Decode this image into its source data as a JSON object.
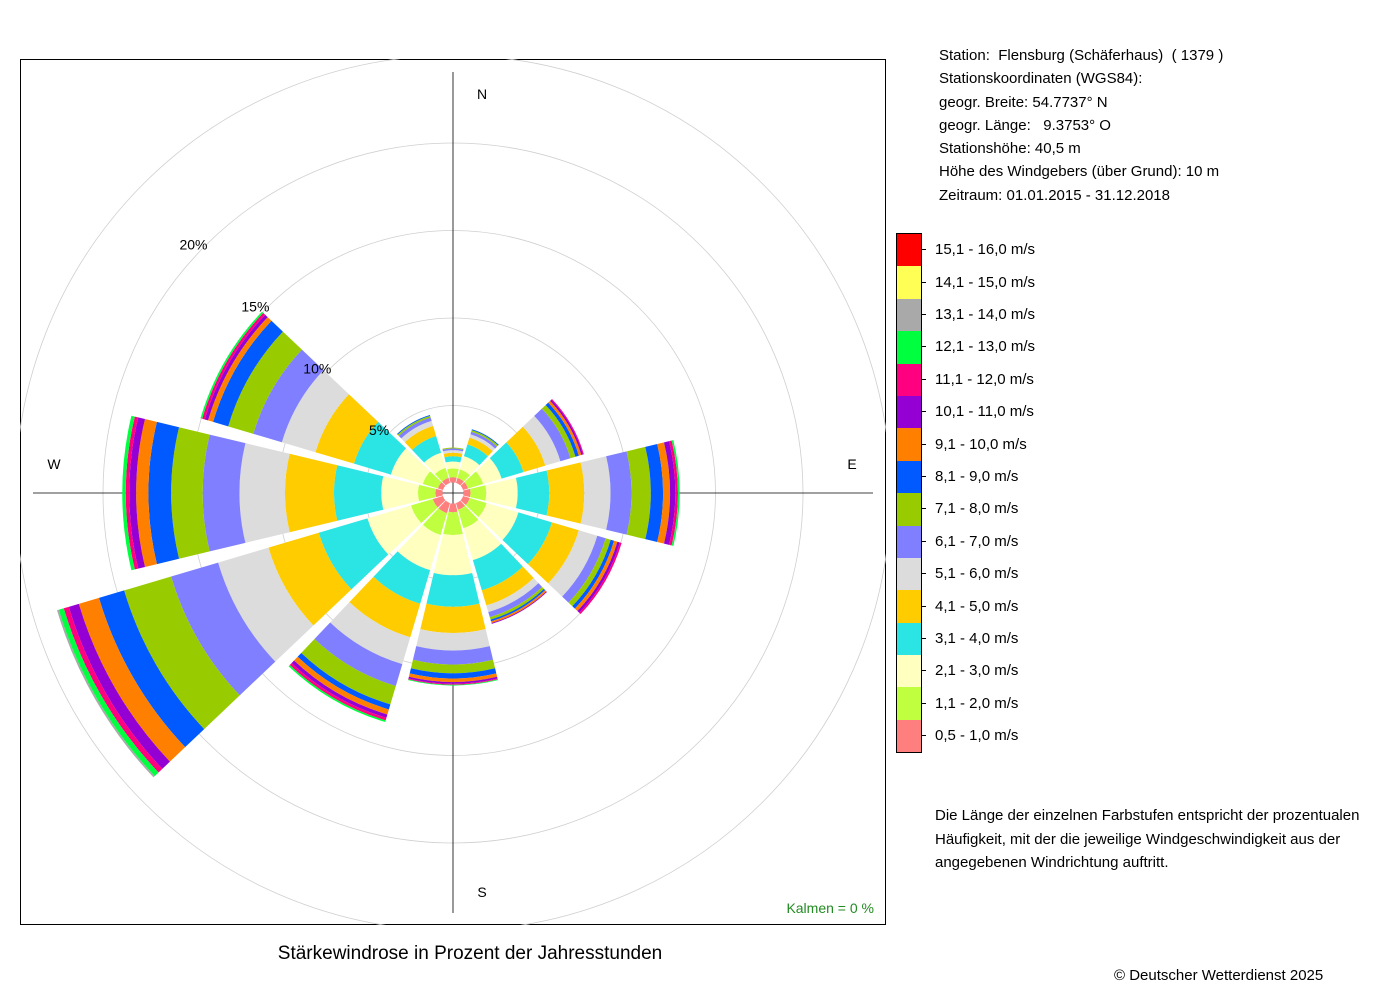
{
  "chart_data": {
    "type": "windrose",
    "title": "Stärkewindrose in Prozent der Jahresstunden",
    "directions": [
      "N",
      "NNE",
      "ENE",
      "E",
      "ESE",
      "SSE",
      "S",
      "SSW",
      "WSW",
      "W",
      "WNW",
      "NNW"
    ],
    "cardinal_labels": [
      "N",
      "E",
      "S",
      "W"
    ],
    "radial_ticks": [
      {
        "value": 5,
        "label": "5%"
      },
      {
        "value": 10,
        "label": "10%"
      },
      {
        "value": 15,
        "label": "15%"
      },
      {
        "value": 20,
        "label": "20%"
      }
    ],
    "r_max": 20,
    "calms_label": "Kalmen  =  0 %",
    "speed_classes": [
      {
        "label": "0,5 - 1,0 m/s",
        "color": "#FF7F7F"
      },
      {
        "label": "1,1 - 2,0 m/s",
        "color": "#BFFF3F"
      },
      {
        "label": "2,1 - 3,0 m/s",
        "color": "#FFFFBF"
      },
      {
        "label": "3,1 - 4,0 m/s",
        "color": "#2BE4E4"
      },
      {
        "label": "4,1 - 5,0 m/s",
        "color": "#FFCC00"
      },
      {
        "label": "5,1 - 6,0 m/s",
        "color": "#DCDCDC"
      },
      {
        "label": "6,1 - 7,0 m/s",
        "color": "#7F7FFF"
      },
      {
        "label": "7,1 - 8,0 m/s",
        "color": "#99CC00"
      },
      {
        "label": "8,1 - 9,0 m/s",
        "color": "#005AFF"
      },
      {
        "label": "9,1 - 10,0 m/s",
        "color": "#FF8000"
      },
      {
        "label": "10,1 - 11,0 m/s",
        "color": "#9400D3"
      },
      {
        "label": "11,1 - 12,0 m/s",
        "color": "#FF0080"
      },
      {
        "label": "12,1 - 13,0 m/s",
        "color": "#00FF3F"
      },
      {
        "label": "13,1 - 14,0 m/s",
        "color": "#A9A9A9"
      },
      {
        "label": "14,1 - 15,0 m/s",
        "color": "#FFFF55"
      },
      {
        "label": "15,1 - 16,0 m/s",
        "color": "#FF0000"
      }
    ],
    "inner_ring_percent": 0.6,
    "series": [
      {
        "direction": "N",
        "values": [
          0.3,
          0.5,
          0.4,
          0.3,
          0.2,
          0.15,
          0.1,
          0.05
        ]
      },
      {
        "direction": "NNE",
        "values": [
          0.3,
          0.5,
          0.8,
          0.7,
          0.4,
          0.2,
          0.15,
          0.1,
          0.05
        ]
      },
      {
        "direction": "ENE",
        "values": [
          0.3,
          0.9,
          1.1,
          1.3,
          1.3,
          0.9,
          0.6,
          0.3,
          0.2,
          0.15,
          0.1,
          0.05
        ]
      },
      {
        "direction": "E",
        "values": [
          0.4,
          0.9,
          1.8,
          1.8,
          2.0,
          1.5,
          1.2,
          1.1,
          0.7,
          0.4,
          0.3,
          0.15,
          0.1
        ]
      },
      {
        "direction": "ESE",
        "values": [
          0.4,
          1.0,
          1.9,
          2.0,
          1.6,
          1.1,
          0.5,
          0.3,
          0.2,
          0.2,
          0.15,
          0.1
        ]
      },
      {
        "direction": "SSE",
        "values": [
          0.4,
          1.1,
          1.9,
          1.8,
          0.9,
          0.4,
          0.3,
          0.15,
          0.1,
          0.1,
          0.05
        ]
      },
      {
        "direction": "S",
        "values": [
          0.5,
          1.3,
          2.3,
          1.8,
          1.5,
          1.0,
          0.8,
          0.5,
          0.3,
          0.2,
          0.1,
          0.05,
          0.05
        ]
      },
      {
        "direction": "SSW",
        "values": [
          0.6,
          1.3,
          2.1,
          2.0,
          2.0,
          1.6,
          1.3,
          1.1,
          0.3,
          0.3,
          0.2,
          0.15,
          0.1
        ]
      },
      {
        "direction": "WSW",
        "values": [
          0.6,
          1.3,
          2.6,
          2.9,
          3.0,
          3.0,
          2.8,
          2.8,
          1.5,
          1.2,
          0.6,
          0.3,
          0.3,
          0.1
        ]
      },
      {
        "direction": "W",
        "values": [
          0.4,
          1.0,
          2.1,
          2.7,
          2.8,
          2.6,
          2.1,
          1.8,
          1.3,
          0.7,
          0.4,
          0.2,
          0.2
        ]
      },
      {
        "direction": "WNW",
        "values": [
          0.3,
          0.9,
          1.9,
          2.2,
          2.3,
          2.0,
          1.7,
          1.5,
          0.9,
          0.3,
          0.2,
          0.15,
          0.1
        ]
      },
      {
        "direction": "NNW",
        "values": [
          0.3,
          0.6,
          0.9,
          1.0,
          0.6,
          0.3,
          0.2,
          0.1,
          0.05
        ]
      }
    ]
  },
  "station_info": {
    "station": "Station:  Flensburg (Schäferhaus)  ( 1379 )",
    "coords_heading": "Stationskoordinaten (WGS84):",
    "latitude": "geogr. Breite: 54.7737° N",
    "longitude": "geogr. Länge:   9.3753° O",
    "elevation": "Stationshöhe: 40,5 m",
    "sensor_height": "Höhe des Windgebers (über Grund): 10 m",
    "period": "Zeitraum: 01.01.2015 - 31.12.2018"
  },
  "note": "Die Länge der einzelnen Farbstufen entspricht der prozentualen Häufigkeit, mit der die jeweilige Windgeschwindigkeit aus der angegebenen Windrichtung auftritt.",
  "copyright": "© Deutscher Wetterdienst  2025",
  "calms_color": "#228B22"
}
